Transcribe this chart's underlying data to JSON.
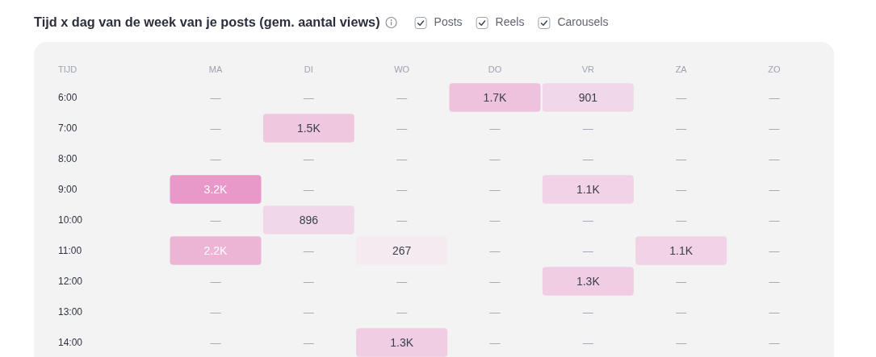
{
  "chart_data": {
    "type": "heatmap",
    "title": "Tijd x dag van de week van je posts (gem. aantal views)",
    "ylabel": "TIJD",
    "annotations": [
      "Posts",
      "Reels",
      "Carousels"
    ],
    "categories": [
      "MA",
      "DI",
      "WO",
      "DO",
      "VR",
      "ZA",
      "ZO"
    ],
    "y_categories": [
      "6:00",
      "7:00",
      "8:00",
      "9:00",
      "10:00",
      "11:00",
      "12:00",
      "13:00",
      "14:00"
    ],
    "cells": [
      [
        null,
        null,
        null,
        1700,
        901,
        null,
        null
      ],
      [
        null,
        1500,
        null,
        null,
        null,
        null,
        null
      ],
      [
        null,
        null,
        null,
        null,
        null,
        null,
        null
      ],
      [
        3200,
        null,
        null,
        null,
        1100,
        null,
        null
      ],
      [
        null,
        896,
        null,
        null,
        null,
        null,
        null
      ],
      [
        2200,
        null,
        267,
        null,
        null,
        1100,
        null
      ],
      [
        null,
        null,
        null,
        null,
        1300,
        null,
        null
      ],
      [
        null,
        null,
        null,
        null,
        null,
        null,
        null
      ],
      [
        null,
        null,
        1300,
        null,
        null,
        null,
        null
      ]
    ],
    "cell_labels": [
      [
        "—",
        "—",
        "—",
        "1.7K",
        "901",
        "—",
        "—"
      ],
      [
        "—",
        "1.5K",
        "—",
        "—",
        "—",
        "—",
        "—"
      ],
      [
        "—",
        "—",
        "—",
        "—",
        "—",
        "—",
        "—"
      ],
      [
        "3.2K",
        "—",
        "—",
        "—",
        "1.1K",
        "—",
        "—"
      ],
      [
        "—",
        "896",
        "—",
        "—",
        "—",
        "—",
        "—"
      ],
      [
        "2.2K",
        "—",
        "267",
        "—",
        "—",
        "1.1K",
        "—"
      ],
      [
        "—",
        "—",
        "—",
        "—",
        "1.3K",
        "—",
        "—"
      ],
      [
        "—",
        "—",
        "—",
        "—",
        "—",
        "—",
        "—"
      ],
      [
        "—",
        "—",
        "1.3K",
        "—",
        "—",
        "—",
        "—"
      ]
    ]
  }
}
